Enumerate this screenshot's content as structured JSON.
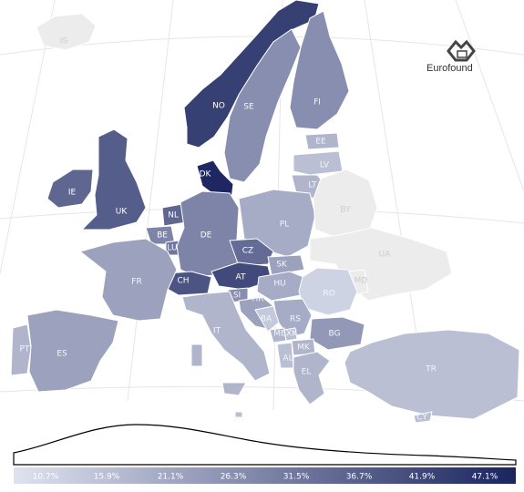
{
  "brand": {
    "name": "Eurofound",
    "icon": "eurofound-logo-icon"
  },
  "legend": {
    "min": 10.7,
    "max": 49.7,
    "ticks": [
      "10.7%",
      "15.9%",
      "21.1%",
      "26.3%",
      "31.5%",
      "36.7%",
      "41.9%",
      "47.1%"
    ],
    "color_low": "#dfe3ef",
    "color_high": "#1a245e",
    "color_nodata": "#ececec"
  },
  "countries": [
    {
      "code": "IS",
      "value": null
    },
    {
      "code": "NO",
      "value": 44
    },
    {
      "code": "SE",
      "value": 28
    },
    {
      "code": "FI",
      "value": 28
    },
    {
      "code": "EE",
      "value": 20
    },
    {
      "code": "LV",
      "value": 18
    },
    {
      "code": "LT",
      "value": 20
    },
    {
      "code": "DK",
      "value": 49
    },
    {
      "code": "IE",
      "value": 36
    },
    {
      "code": "UK",
      "value": 38
    },
    {
      "code": "NL",
      "value": 36
    },
    {
      "code": "BE",
      "value": 30
    },
    {
      "code": "LU",
      "value": 33
    },
    {
      "code": "DE",
      "value": 30
    },
    {
      "code": "PL",
      "value": 22
    },
    {
      "code": "BY",
      "value": null
    },
    {
      "code": "UA",
      "value": null
    },
    {
      "code": "CZ",
      "value": 35
    },
    {
      "code": "SK",
      "value": 24
    },
    {
      "code": "AT",
      "value": 42
    },
    {
      "code": "CH",
      "value": 40
    },
    {
      "code": "HU",
      "value": 22
    },
    {
      "code": "FR",
      "value": 24
    },
    {
      "code": "MD",
      "value": null
    },
    {
      "code": "RO",
      "value": 14
    },
    {
      "code": "SI",
      "value": 28
    },
    {
      "code": "HR",
      "value": 24
    },
    {
      "code": "RS",
      "value": 22
    },
    {
      "code": "BA",
      "value": 16
    },
    {
      "code": "ME",
      "value": 20
    },
    {
      "code": "XK",
      "value": 18
    },
    {
      "code": "BG",
      "value": 26
    },
    {
      "code": "MK",
      "value": 20
    },
    {
      "code": "AL",
      "value": 18
    },
    {
      "code": "IT",
      "value": 20
    },
    {
      "code": "PT",
      "value": 20
    },
    {
      "code": "ES",
      "value": 24
    },
    {
      "code": "EL",
      "value": 20
    },
    {
      "code": "TR",
      "value": 18
    },
    {
      "code": "MT",
      "value": 18
    },
    {
      "code": "CY",
      "value": 18
    }
  ]
}
